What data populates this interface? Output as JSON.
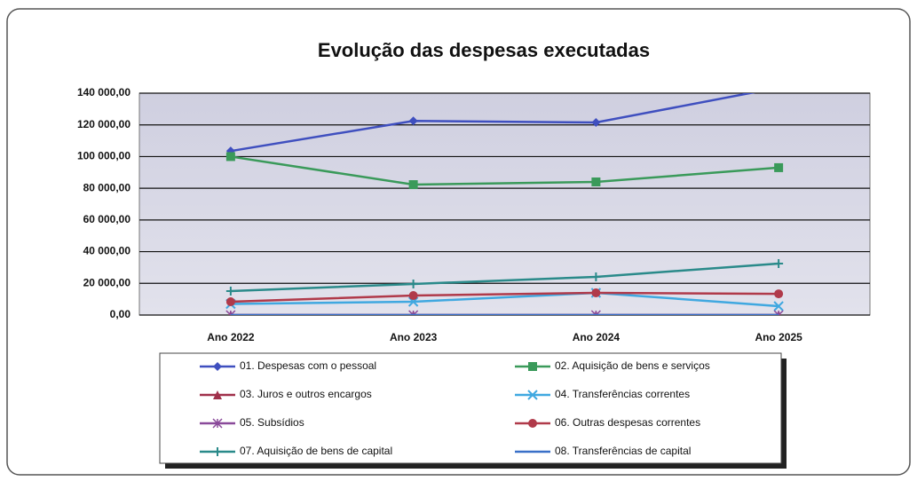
{
  "chart_data": {
    "type": "line",
    "title": "Evolução das despesas executadas",
    "categories": [
      "Ano 2022",
      "Ano 2023",
      "Ano 2024",
      "Ano 2025"
    ],
    "ylim": [
      0,
      140000
    ],
    "yticks": [
      {
        "value": 0,
        "label": "0,00"
      },
      {
        "value": 20000,
        "label": "20 000,00"
      },
      {
        "value": 40000,
        "label": "40 000,00"
      },
      {
        "value": 60000,
        "label": "60 000,00"
      },
      {
        "value": 80000,
        "label": "80 000,00"
      },
      {
        "value": 100000,
        "label": "100 000,00"
      },
      {
        "value": 120000,
        "label": "120 000,00"
      },
      {
        "value": 140000,
        "label": "140 000,00"
      }
    ],
    "grid": true,
    "legend": "bottom",
    "series": [
      {
        "name": "01. Despesas com o pessoal",
        "color": "#3f4fbf",
        "marker": "diamond",
        "values": [
          103500,
          122500,
          121500,
          143500
        ]
      },
      {
        "name": "02. Aquisição de bens e serviços",
        "color": "#3a9a5a",
        "marker": "square",
        "values": [
          100000,
          82300,
          84000,
          93000
        ]
      },
      {
        "name": "03. Juros e outros encargos",
        "color": "#a0304a",
        "marker": "triangle",
        "values": [
          0,
          0,
          0,
          0
        ]
      },
      {
        "name": "04. Transferências correntes",
        "color": "#40a8e0",
        "marker": "x",
        "values": [
          7000,
          8400,
          14000,
          5600
        ]
      },
      {
        "name": "05. Subsídios",
        "color": "#8a4a9a",
        "marker": "star",
        "values": [
          0,
          0,
          0,
          0
        ]
      },
      {
        "name": "06. Outras despesas correntes",
        "color": "#b03a4a",
        "marker": "circle",
        "values": [
          8400,
          12300,
          14000,
          13400
        ]
      },
      {
        "name": "07. Aquisição de bens de capital",
        "color": "#2a8a8a",
        "marker": "plus",
        "values": [
          15100,
          19600,
          24100,
          32500
        ]
      },
      {
        "name": "08. Transferências de capital",
        "color": "#3a70c8",
        "marker": "none",
        "values": [
          0,
          0,
          0,
          0
        ]
      }
    ]
  }
}
